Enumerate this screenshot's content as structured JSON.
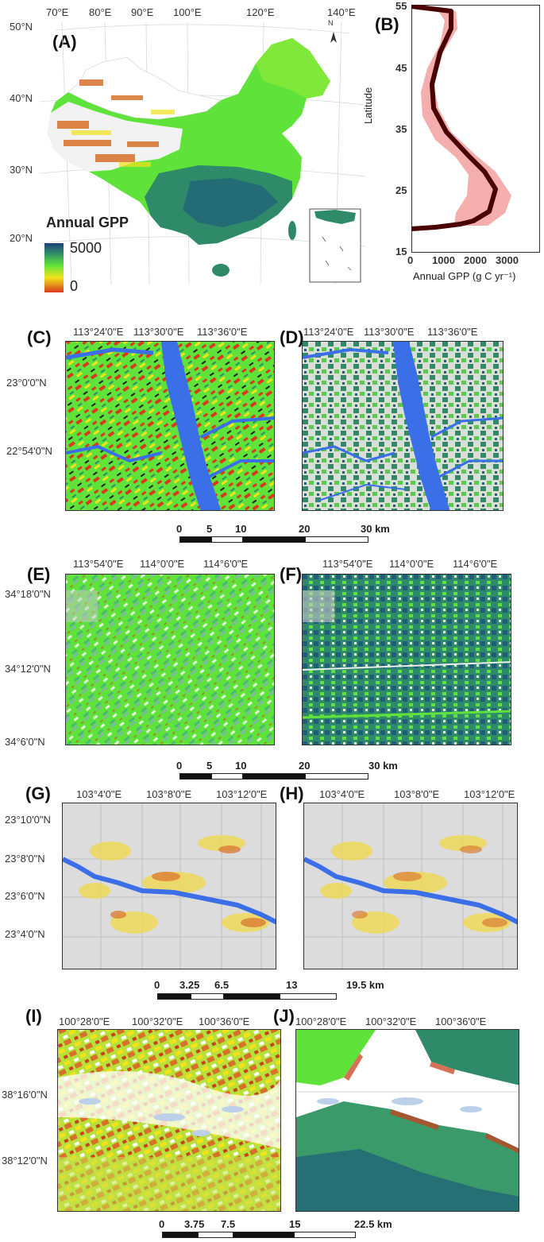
{
  "panelA": {
    "label": "(A)",
    "top_ticks": [
      "70°E",
      "80°E",
      "90°E",
      "100°E",
      "120°E",
      "140°E"
    ],
    "left_ticks": [
      "50°N",
      "40°N",
      "30°N",
      "20°N"
    ],
    "legend_title": "Annual GPP",
    "legend_max": "5000",
    "legend_min": "0",
    "north_label": "N"
  },
  "panelB": {
    "label": "(B)",
    "ylabel": "Latitude",
    "xlabel": "Annual GPP (g C yr⁻¹)",
    "y_ticks": [
      "55",
      "45",
      "35",
      "25",
      "15"
    ],
    "x_ticks": [
      "0",
      "1000",
      "2000",
      "3000"
    ]
  },
  "panelC": {
    "label": "(C)",
    "top_ticks": [
      "113°24'0\"E",
      "113°30'0\"E",
      "113°36'0\"E"
    ],
    "left_ticks": [
      "23°0'0\"N",
      "22°54'0\"N"
    ]
  },
  "panelD": {
    "label": "(D)",
    "top_ticks": [
      "113°24'0\"E",
      "113°30'0\"E",
      "113°36'0\"E"
    ]
  },
  "scale1": [
    "0",
    "5",
    "10",
    "20",
    "30 km"
  ],
  "panelE": {
    "label": "(E)",
    "top_ticks": [
      "113°54'0\"E",
      "114°0'0\"E",
      "114°6'0\"E"
    ],
    "left_ticks": [
      "34°18'0\"N",
      "34°12'0\"N",
      "34°6'0\"N"
    ]
  },
  "panelF": {
    "label": "(F)",
    "top_ticks": [
      "113°54'0\"E",
      "114°0'0\"E",
      "114°6'0\"E"
    ]
  },
  "scale2": [
    "0",
    "5",
    "10",
    "20",
    "30 km"
  ],
  "panelG": {
    "label": "(G)",
    "top_ticks": [
      "103°4'0\"E",
      "103°8'0\"E",
      "103°12'0\"E"
    ],
    "left_ticks": [
      "23°10'0\"N",
      "23°8'0\"N",
      "23°6'0\"N",
      "23°4'0\"N"
    ]
  },
  "panelH": {
    "label": "(H)",
    "top_ticks": [
      "103°4'0\"E",
      "103°8'0\"E",
      "103°12'0\"E"
    ]
  },
  "scale3": [
    "0",
    "3.25",
    "6.5",
    "13",
    "19.5 km"
  ],
  "panelI": {
    "label": "(I)",
    "top_ticks": [
      "100°28'0\"E",
      "100°32'0\"E",
      "100°36'0\"E"
    ],
    "left_ticks": [
      "38°16'0\"N",
      "38°12'0\"N"
    ]
  },
  "panelJ": {
    "label": "(J)",
    "top_ticks": [
      "100°28'0\"E",
      "100°32'0\"E",
      "100°36'0\"E"
    ]
  },
  "scale4": [
    "0",
    "3.75",
    "7.5",
    "15",
    "22.5 km"
  ],
  "colors": {
    "water": "#3a6fe8",
    "gpp_low": "#d93a1e",
    "gpp_mid": "#f2e21a",
    "gpp_green": "#5fe33a",
    "gpp_high": "#1e5e7a",
    "urban": "#d9d9d9",
    "ribbon": "#f2a0a0",
    "line": "#4a0000"
  }
}
